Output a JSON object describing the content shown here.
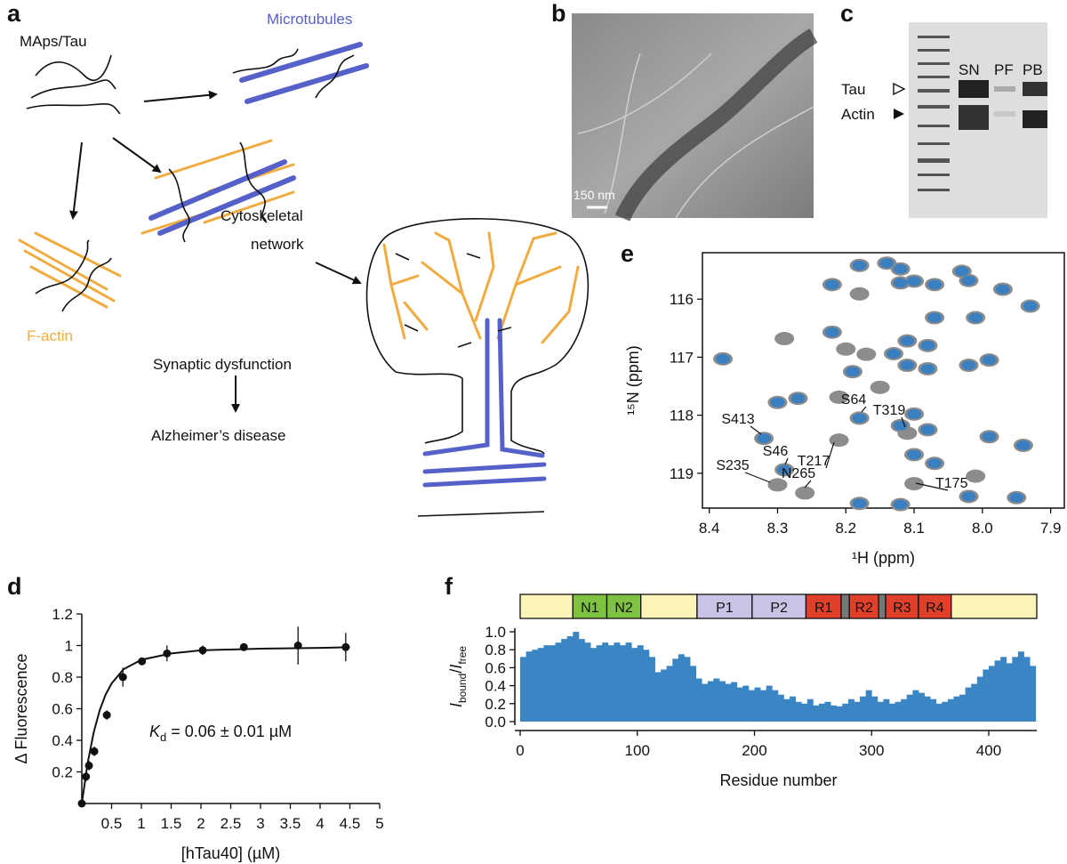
{
  "panel_labels": [
    "a",
    "b",
    "c",
    "d",
    "e",
    "f"
  ],
  "diagram": {
    "maps_tau": "MAps/Tau",
    "microtubules": "Microtubules",
    "f_actin": "F-actin",
    "network": [
      "Cytoskeletal",
      "network"
    ],
    "synaptic": "Synaptic dysfunction",
    "alzheimers": "Alzheimer’s disease"
  },
  "micrograph": {
    "scale_bar": "150 nm"
  },
  "gel": {
    "lanes": [
      "SN",
      "PF",
      "PB"
    ],
    "bands": [
      "Tau",
      "Actin"
    ]
  },
  "chart_data": [
    {
      "type": "scatter",
      "xlabel": "[hTau40] (µM)",
      "ylabel": "Δ Fluorescence",
      "annotation": [
        "K",
        "d",
        " = 0.06 ± 0.01 µM"
      ],
      "color": "#111111",
      "x": [
        0,
        0.07,
        0.12,
        0.21,
        0.42,
        0.69,
        1.01,
        1.43,
        2.03,
        2.72,
        3.63,
        4.43
      ],
      "values": [
        0,
        0.17,
        0.24,
        0.33,
        0.56,
        0.8,
        0.9,
        0.95,
        0.97,
        0.99,
        1.0,
        0.99
      ],
      "errors": [
        0.02,
        0.03,
        0.03,
        0.03,
        0.03,
        0.06,
        0.02,
        0.05,
        0.03,
        0.02,
        0.12,
        0.09
      ],
      "fit": {
        "x": [
          0,
          0.1,
          0.2,
          0.3,
          0.4,
          0.5,
          0.7,
          1,
          1.5,
          2,
          3,
          4,
          4.5
        ],
        "values": [
          0,
          0.26,
          0.45,
          0.59,
          0.69,
          0.76,
          0.85,
          0.91,
          0.95,
          0.97,
          0.98,
          0.985,
          0.99
        ]
      },
      "xlim": [
        0,
        5
      ],
      "ylim": [
        0,
        1.2
      ],
      "xticks": [
        0.5,
        1,
        1.5,
        2,
        2.5,
        3,
        3.5,
        4,
        4.5,
        5
      ],
      "yticks": [
        0.2,
        0.4,
        0.6,
        0.8,
        1,
        1.2
      ]
    },
    {
      "type": "scatter",
      "xlabel": "¹H (ppm)",
      "ylabel": "¹⁵N (ppm)",
      "series": [
        {
          "color": "#8c8c8c",
          "x": [
            8.18,
            8.14,
            8.12,
            8.22,
            8.18,
            8.12,
            8.1,
            8.07,
            8.03,
            8.02,
            7.97,
            7.93,
            8.22,
            8.29,
            8.07,
            8.01,
            8.11,
            8.08,
            8.2,
            8.17,
            8.13,
            8.11,
            8.08,
            8.02,
            7.99,
            8.38,
            8.19,
            8.15,
            8.3,
            8.27,
            8.21,
            8.18,
            8.08,
            8.12,
            8.1,
            7.99,
            7.94,
            8.1,
            8.07,
            8.32,
            8.29,
            8.3,
            8.26,
            8.21,
            8.11,
            8.1,
            8.02,
            7.95,
            8.18,
            8.12,
            8.01
          ],
          "values": [
            115.42,
            115.38,
            115.48,
            115.75,
            115.91,
            115.72,
            115.69,
            115.75,
            115.52,
            115.68,
            115.83,
            116.12,
            116.57,
            116.68,
            116.32,
            116.32,
            116.72,
            116.8,
            116.86,
            116.95,
            116.94,
            117.14,
            117.2,
            117.14,
            117.05,
            117.03,
            117.25,
            117.52,
            117.78,
            117.71,
            117.69,
            118.05,
            118.25,
            118.18,
            117.98,
            118.37,
            118.52,
            118.68,
            118.83,
            118.4,
            118.94,
            119.2,
            119.34,
            118.43,
            118.31,
            119.18,
            119.4,
            119.42,
            119.52,
            119.54,
            119.05
          ]
        },
        {
          "color": "#3a7fbf",
          "x": [
            8.18,
            8.14,
            8.12,
            8.22,
            8.12,
            8.1,
            8.07,
            8.03,
            8.02,
            7.97,
            7.93,
            8.22,
            8.07,
            8.01,
            8.11,
            8.08,
            8.13,
            8.11,
            8.08,
            8.02,
            7.99,
            8.38,
            8.19,
            8.3,
            8.27,
            8.18,
            8.08,
            8.12,
            8.1,
            7.99,
            7.94,
            8.1,
            8.07,
            8.32,
            8.29,
            8.02,
            7.95,
            8.18,
            8.12
          ],
          "values": [
            115.42,
            115.38,
            115.48,
            115.75,
            115.72,
            115.69,
            115.75,
            115.52,
            115.68,
            115.83,
            116.12,
            116.57,
            116.32,
            116.32,
            116.72,
            116.8,
            116.94,
            117.14,
            117.2,
            117.14,
            117.05,
            117.03,
            117.25,
            117.78,
            117.71,
            118.05,
            118.25,
            118.18,
            117.98,
            118.37,
            118.52,
            118.68,
            118.83,
            118.4,
            118.94,
            119.4,
            119.42,
            119.52,
            119.54
          ]
        }
      ],
      "annotations": [
        "S413",
        "S46",
        "S235",
        "N265",
        "S64",
        "T319",
        "T217",
        "T175"
      ],
      "xlim": [
        8.41,
        7.88
      ],
      "ylim": [
        119.6,
        115.2
      ],
      "xticks": [
        8.4,
        8.3,
        8.2,
        8.1,
        {
          "value": 8,
          "label": "8.0"
        },
        7.9
      ],
      "yticks": [
        116,
        117,
        118,
        119
      ]
    },
    {
      "type": "bar",
      "xlabel": "Residue number",
      "ylabel": [
        "I",
        "bound",
        "/",
        "I",
        "free"
      ],
      "color": "#3a86c4",
      "domains": [
        {
          "label": null,
          "start": 0,
          "end": 45,
          "color": "#fdf5b8"
        },
        {
          "label": "N1",
          "start": 45,
          "end": 74,
          "color": "#7fc242"
        },
        {
          "label": "N2",
          "start": 74,
          "end": 103,
          "color": "#7fc242"
        },
        {
          "label": null,
          "start": 103,
          "end": 151,
          "color": "#fdf5b8"
        },
        {
          "label": "P1",
          "start": 151,
          "end": 198,
          "color": "#c9c3e6"
        },
        {
          "label": "P2",
          "start": 198,
          "end": 244,
          "color": "#c9c3e6"
        },
        {
          "label": "R1",
          "start": 244,
          "end": 274,
          "color": "#e0402a"
        },
        {
          "label": null,
          "start": 274,
          "end": 281,
          "color": "#777777"
        },
        {
          "label": "R2",
          "start": 281,
          "end": 306,
          "color": "#e0402a"
        },
        {
          "label": null,
          "start": 306,
          "end": 312,
          "color": "#777777"
        },
        {
          "label": "R3",
          "start": 312,
          "end": 340,
          "color": "#e0402a"
        },
        {
          "label": "R4",
          "start": 340,
          "end": 368,
          "color": "#e0402a"
        },
        {
          "label": null,
          "start": 368,
          "end": 441,
          "color": "#fdf5b8"
        }
      ],
      "x": [
        0,
        5,
        10,
        15,
        20,
        25,
        30,
        35,
        40,
        45,
        50,
        55,
        60,
        65,
        70,
        75,
        80,
        85,
        90,
        95,
        100,
        105,
        110,
        115,
        120,
        125,
        130,
        135,
        140,
        145,
        150,
        155,
        160,
        165,
        170,
        175,
        180,
        185,
        190,
        195,
        200,
        205,
        210,
        215,
        220,
        225,
        230,
        235,
        240,
        245,
        250,
        255,
        260,
        265,
        270,
        275,
        280,
        285,
        290,
        295,
        300,
        305,
        310,
        315,
        320,
        325,
        330,
        335,
        340,
        345,
        350,
        355,
        360,
        365,
        370,
        375,
        380,
        385,
        390,
        395,
        400,
        405,
        410,
        415,
        420,
        425,
        430,
        435
      ],
      "values": [
        0.72,
        0.78,
        0.8,
        0.82,
        0.85,
        0.85,
        0.88,
        0.92,
        0.95,
        1.0,
        0.92,
        0.88,
        0.82,
        0.85,
        0.88,
        0.85,
        0.88,
        0.85,
        0.88,
        0.82,
        0.85,
        0.8,
        0.72,
        0.55,
        0.58,
        0.62,
        0.7,
        0.75,
        0.72,
        0.62,
        0.48,
        0.42,
        0.45,
        0.48,
        0.45,
        0.42,
        0.44,
        0.38,
        0.4,
        0.35,
        0.38,
        0.35,
        0.4,
        0.35,
        0.3,
        0.25,
        0.28,
        0.22,
        0.2,
        0.25,
        0.18,
        0.2,
        0.22,
        0.18,
        0.17,
        0.2,
        0.25,
        0.22,
        0.28,
        0.35,
        0.28,
        0.22,
        0.25,
        0.2,
        0.22,
        0.25,
        0.3,
        0.35,
        0.32,
        0.28,
        0.25,
        0.2,
        0.22,
        0.25,
        0.28,
        0.3,
        0.38,
        0.42,
        0.5,
        0.58,
        0.62,
        0.68,
        0.72,
        0.65,
        0.72,
        0.78,
        0.72,
        0.62
      ],
      "xlim": [
        0,
        441
      ],
      "ylim": [
        -0.04,
        1.04
      ],
      "xticks": [
        0,
        100,
        200,
        300,
        400
      ],
      "yticks": [
        {
          "value": 0,
          "label": "0.0"
        },
        0.2,
        0.4,
        0.6,
        0.8,
        {
          "value": 1,
          "label": "1.0"
        }
      ]
    }
  ]
}
